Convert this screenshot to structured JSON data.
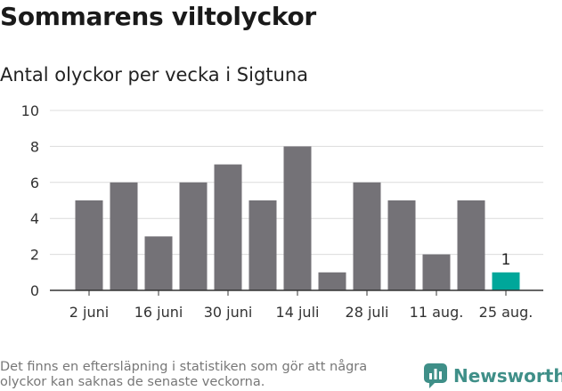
{
  "title": "Sommarens viltolyckor",
  "subtitle": "Antal olyckor per vecka i Sigtuna",
  "footnote": "Det finns en eftersläpning i statistiken som gör att några olyckor kan saknas de senaste veckorna.",
  "brand": {
    "name": "Newsworthy",
    "icon": "newsworthy-logo-icon"
  },
  "colors": {
    "bar": "#747277",
    "highlight": "#00a79a",
    "grid": "#dcdcdc",
    "axis": "#333333",
    "brand": "#3f8f88"
  },
  "chart_data": {
    "type": "bar",
    "values": [
      5,
      6,
      3,
      6,
      7,
      5,
      8,
      1,
      6,
      5,
      2,
      5,
      1
    ],
    "x_tick_labels": [
      "2 juni",
      "16 juni",
      "30 juni",
      "14 juli",
      "28 juli",
      "11 aug.",
      "25 aug."
    ],
    "y_ticks": [
      0,
      2,
      4,
      6,
      8,
      10
    ],
    "ylim": [
      0,
      10
    ],
    "highlight_last": true,
    "data_labels": [
      {
        "index": 12,
        "text": "1"
      }
    ],
    "grid": true
  }
}
